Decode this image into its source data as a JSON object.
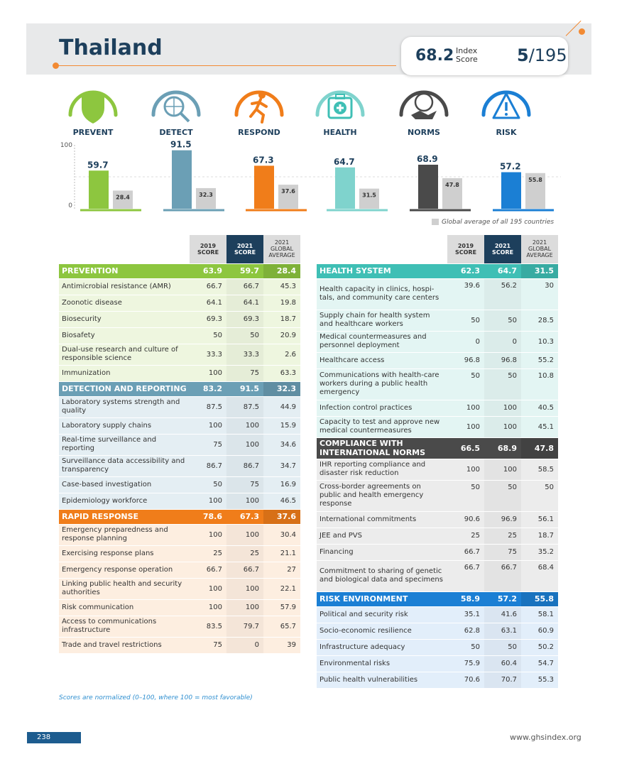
{
  "header": {
    "country": "Thailand",
    "index_score": "68.2",
    "index_score_label_1": "Index",
    "index_score_label_2": "Score",
    "rank": "5",
    "rank_total": "/195"
  },
  "categories": [
    {
      "label": "PREVENT",
      "icon": "shield-icon",
      "color": "#8dc63f"
    },
    {
      "label": "DETECT",
      "icon": "magnifier-globe-icon",
      "color": "#6b9fb5"
    },
    {
      "label": "RESPOND",
      "icon": "running-person-icon",
      "color": "#f07d1a"
    },
    {
      "label": "HEALTH",
      "icon": "medical-kit-icon",
      "color": "#7fd3cd"
    },
    {
      "label": "NORMS",
      "icon": "handshake-globe-icon",
      "color": "#4a4a4a"
    },
    {
      "label": "RISK",
      "icon": "warning-icon",
      "color": "#1b7fd4"
    }
  ],
  "chart_data": {
    "type": "bar",
    "categories": [
      "PREVENT",
      "DETECT",
      "RESPOND",
      "HEALTH",
      "NORMS",
      "RISK"
    ],
    "series": [
      {
        "name": "",
        "values": [
          59.7,
          91.5,
          67.3,
          64.7,
          68.9,
          57.2
        ]
      },
      {
        "name": "Global average of all 195 countries",
        "values": [
          28.4,
          32.3,
          37.6,
          31.5,
          47.8,
          55.8
        ]
      }
    ],
    "ylim": [
      0,
      100
    ],
    "yticks": [
      "0",
      "100"
    ],
    "colors": [
      "#8dc63f",
      "#6b9fb5",
      "#f07d1a",
      "#7fd3cd",
      "#4a4a4a",
      "#1b7fd4"
    ],
    "avg_color": "#cfcfcf"
  },
  "legend": "Global average of all 195 countries",
  "table_headers": {
    "y2019": "2019",
    "y2021": "2021",
    "score": "SCORE",
    "global_1": "GLOBAL",
    "global_2": "AVERAGE"
  },
  "left_table": [
    {
      "section": true,
      "name": "PREVENTION",
      "v2019": "63.9",
      "v2021": "59.7",
      "avg": "28.4",
      "color": "#8dc63f",
      "bg": "#eef6df"
    },
    {
      "name": "Antimicrobial resistance (AMR)",
      "v2019": "66.7",
      "v2021": "66.7",
      "avg": "45.3",
      "bg": "#eef6df"
    },
    {
      "name": "Zoonotic disease",
      "v2019": "64.1",
      "v2021": "64.1",
      "avg": "19.8",
      "bg": "#eef6df"
    },
    {
      "name": "Biosecurity",
      "v2019": "69.3",
      "v2021": "69.3",
      "avg": "18.7",
      "bg": "#eef6df"
    },
    {
      "name": "Biosafety",
      "v2019": "50",
      "v2021": "50",
      "avg": "20.9",
      "bg": "#eef6df"
    },
    {
      "name": "Dual-use research and culture of responsible science",
      "v2019": "33.3",
      "v2021": "33.3",
      "avg": "2.6",
      "bg": "#eef6df"
    },
    {
      "name": "Immunization",
      "v2019": "100",
      "v2021": "75",
      "avg": "63.3",
      "bg": "#eef6df"
    },
    {
      "section": true,
      "name": "DETECTION AND REPORTING",
      "v2019": "83.2",
      "v2021": "91.5",
      "avg": "32.3",
      "color": "#6b9fb5",
      "bg": "#e4eef3"
    },
    {
      "name": "Laboratory systems strength and quality",
      "v2019": "87.5",
      "v2021": "87.5",
      "avg": "44.9",
      "bg": "#e4eef3"
    },
    {
      "name": "Laboratory supply chains",
      "v2019": "100",
      "v2021": "100",
      "avg": "15.9",
      "bg": "#e4eef3"
    },
    {
      "name": "Real-time surveillance and reporting",
      "v2019": "75",
      "v2021": "100",
      "avg": "34.6",
      "bg": "#e4eef3"
    },
    {
      "name": "Surveillance data accessibility and transparency",
      "v2019": "86.7",
      "v2021": "86.7",
      "avg": "34.7",
      "bg": "#e4eef3"
    },
    {
      "name": "Case-based investigation",
      "v2019": "50",
      "v2021": "75",
      "avg": "16.9",
      "bg": "#e4eef3"
    },
    {
      "name": "Epidemiology workforce",
      "v2019": "100",
      "v2021": "100",
      "avg": "46.5",
      "bg": "#e4eef3"
    },
    {
      "section": true,
      "name": "RAPID RESPONSE",
      "v2019": "78.6",
      "v2021": "67.3",
      "avg": "37.6",
      "color": "#f07d1a",
      "bg": "#fdeee0"
    },
    {
      "name": "Emergency preparedness and response planning",
      "v2019": "100",
      "v2021": "100",
      "avg": "30.4",
      "bg": "#fdeee0"
    },
    {
      "name": "Exercising response plans",
      "v2019": "25",
      "v2021": "25",
      "avg": "21.1",
      "bg": "#fdeee0"
    },
    {
      "name": "Emergency response operation",
      "v2019": "66.7",
      "v2021": "66.7",
      "avg": "27",
      "bg": "#fdeee0"
    },
    {
      "name": "Linking public health and security authorities",
      "v2019": "100",
      "v2021": "100",
      "avg": "22.1",
      "bg": "#fdeee0"
    },
    {
      "name": "Risk communication",
      "v2019": "100",
      "v2021": "100",
      "avg": "57.9",
      "bg": "#fdeee0"
    },
    {
      "name": "Access to communications infrastructure",
      "v2019": "83.5",
      "v2021": "79.7",
      "avg": "65.7",
      "bg": "#fdeee0"
    },
    {
      "name": "Trade and travel restrictions",
      "v2019": "75",
      "v2021": "0",
      "avg": "39",
      "bg": "#fdeee0"
    }
  ],
  "right_table": [
    {
      "section": true,
      "name": "HEALTH SYSTEM",
      "v2019": "62.3",
      "v2021": "64.7",
      "avg": "31.5",
      "color": "#3fbfb5",
      "bg": "#e3f5f3"
    },
    {
      "name": "Health capacity in clinics, hospi-tals, and community care centers",
      "v2019": "39.6",
      "v2021": "56.2",
      "avg": "30",
      "bg": "#e3f5f3"
    },
    {
      "name": "Supply chain for health system and healthcare workers",
      "v2019": "50",
      "v2021": "50",
      "avg": "28.5",
      "bg": "#e3f5f3"
    },
    {
      "name": "Medical countermeasures and personnel deployment",
      "v2019": "0",
      "v2021": "0",
      "avg": "10.3",
      "bg": "#e3f5f3"
    },
    {
      "name": "Healthcare access",
      "v2019": "96.8",
      "v2021": "96.8",
      "avg": "55.2",
      "bg": "#e3f5f3"
    },
    {
      "name": "Communications with health-care workers during a public health emergency",
      "v2019": "50",
      "v2021": "50",
      "avg": "10.8",
      "bg": "#e3f5f3"
    },
    {
      "name": "Infection control practices",
      "v2019": "100",
      "v2021": "100",
      "avg": "40.5",
      "bg": "#e3f5f3"
    },
    {
      "name": "Capacity to test and approve new medical countermeasures",
      "v2019": "100",
      "v2021": "100",
      "avg": "45.1",
      "bg": "#e3f5f3"
    },
    {
      "section": true,
      "name": "COMPLIANCE WITH INTERNATIONAL NORMS",
      "v2019": "66.5",
      "v2021": "68.9",
      "avg": "47.8",
      "color": "#4a4a4a",
      "bg": "#ececec"
    },
    {
      "name": "IHR reporting compliance and disaster risk reduction",
      "v2019": "100",
      "v2021": "100",
      "avg": "58.5",
      "bg": "#ececec"
    },
    {
      "name": "Cross-border agreements on public and health emergency response",
      "v2019": "50",
      "v2021": "50",
      "avg": "50",
      "bg": "#ececec"
    },
    {
      "name": "International commitments",
      "v2019": "90.6",
      "v2021": "96.9",
      "avg": "56.1",
      "bg": "#ececec"
    },
    {
      "name": "JEE and PVS",
      "v2019": "25",
      "v2021": "25",
      "avg": "18.7",
      "bg": "#ececec"
    },
    {
      "name": "Financing",
      "v2019": "66.7",
      "v2021": "75",
      "avg": "35.2",
      "bg": "#ececec"
    },
    {
      "name": "Commitment to sharing of genetic and biological data and specimens",
      "v2019": "66.7",
      "v2021": "66.7",
      "avg": "68.4",
      "bg": "#ececec"
    },
    {
      "section": true,
      "name": "RISK ENVIRONMENT",
      "v2019": "58.9",
      "v2021": "57.2",
      "avg": "55.8",
      "color": "#1b7fd4",
      "bg": "#e2eefa"
    },
    {
      "name": "Political and security risk",
      "v2019": "35.1",
      "v2021": "41.6",
      "avg": "58.1",
      "bg": "#e2eefa"
    },
    {
      "name": "Socio-economic resilience",
      "v2019": "62.8",
      "v2021": "63.1",
      "avg": "60.9",
      "bg": "#e2eefa"
    },
    {
      "name": "Infrastructure adequacy",
      "v2019": "50",
      "v2021": "50",
      "avg": "50.2",
      "bg": "#e2eefa"
    },
    {
      "name": "Environmental risks",
      "v2019": "75.9",
      "v2021": "60.4",
      "avg": "54.7",
      "bg": "#e2eefa"
    },
    {
      "name": "Public health vulnerabilities",
      "v2019": "70.6",
      "v2021": "70.7",
      "avg": "55.3",
      "bg": "#e2eefa"
    }
  ],
  "footnote": "Scores are normalized (0–100, where 100 = most favorable)",
  "page_number": "238",
  "website": "www.ghsindex.org"
}
